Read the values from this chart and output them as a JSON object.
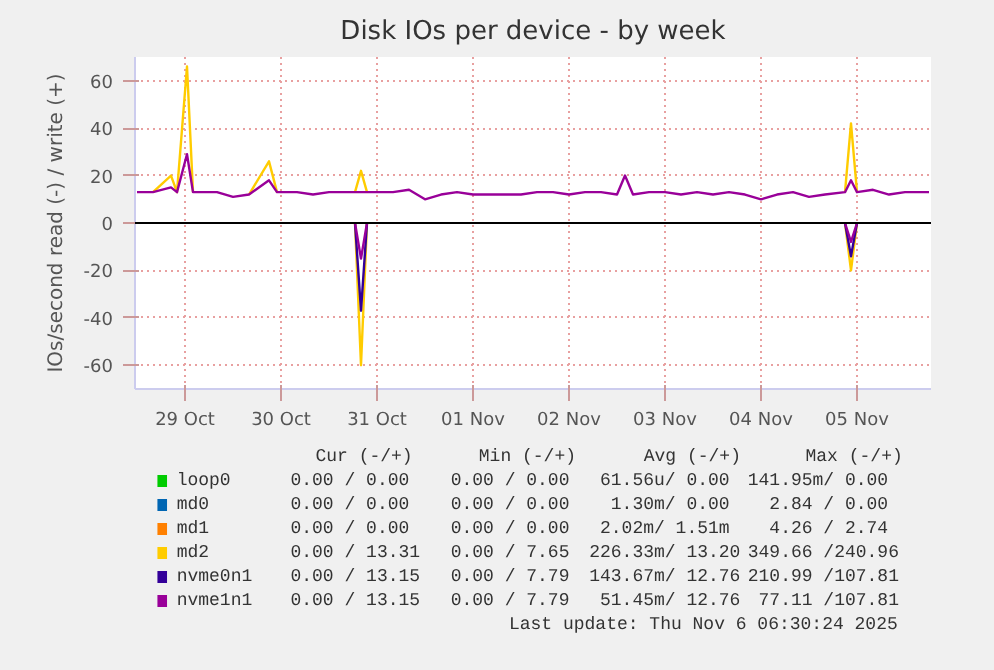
{
  "chart_data": {
    "type": "line",
    "title": "Disk IOs per device - by week",
    "ylabel": "IOs/second read (-) / write (+)",
    "x": [
      "2025-10-29T00:00",
      "2025-10-29T04:00",
      "2025-10-29T08:30",
      "2025-10-29T10:00",
      "2025-10-29T12:30",
      "2025-10-29T14:00",
      "2025-10-29T16:00",
      "2025-10-29T20:00",
      "2025-10-30T00:00",
      "2025-10-30T04:00",
      "2025-10-30T09:00",
      "2025-10-30T11:00",
      "2025-10-30T16:00",
      "2025-10-30T20:00",
      "2025-10-31T00:00",
      "2025-10-31T04:00",
      "2025-10-31T06:30",
      "2025-10-31T08:00",
      "2025-10-31T09:30",
      "2025-10-31T12:00",
      "2025-10-31T16:00",
      "2025-10-31T20:00",
      "2025-11-01T00:00",
      "2025-11-01T04:00",
      "2025-11-01T08:00",
      "2025-11-01T12:00",
      "2025-11-01T16:00",
      "2025-11-01T20:00",
      "2025-11-02T00:00",
      "2025-11-02T04:00",
      "2025-11-02T08:00",
      "2025-11-02T12:00",
      "2025-11-02T16:00",
      "2025-11-02T20:00",
      "2025-11-03T00:00",
      "2025-11-03T02:00",
      "2025-11-03T04:00",
      "2025-11-03T08:00",
      "2025-11-03T12:00",
      "2025-11-03T16:00",
      "2025-11-03T20:00",
      "2025-11-04T00:00",
      "2025-11-04T04:00",
      "2025-11-04T08:00",
      "2025-11-04T12:00",
      "2025-11-04T16:00",
      "2025-11-04T20:00",
      "2025-11-05T00:00",
      "2025-11-05T04:00",
      "2025-11-05T09:00",
      "2025-11-05T10:30",
      "2025-11-05T12:00",
      "2025-11-05T16:00",
      "2025-11-05T20:00",
      "2025-11-06T00:00",
      "2025-11-06T04:00",
      "2025-11-06T06:00"
    ],
    "series": [
      {
        "name": "loop0",
        "color": "#00cc00",
        "values": [
          null,
          null,
          null,
          null,
          null,
          null,
          null,
          null,
          null,
          null,
          null,
          null,
          null,
          null,
          null,
          null,
          null,
          null,
          null,
          null,
          null,
          null,
          null,
          null,
          null,
          null,
          null,
          null,
          null,
          null,
          null,
          null,
          null,
          null,
          null,
          null,
          null,
          null,
          null,
          null,
          null,
          null,
          null,
          null,
          null,
          null,
          null,
          null,
          null,
          null,
          null,
          null,
          null,
          null,
          null,
          null,
          null
        ]
      },
      {
        "name": "md0",
        "color": "#0066b3",
        "values": [
          null,
          null,
          null,
          null,
          null,
          null,
          null,
          null,
          null,
          null,
          null,
          null,
          null,
          null,
          null,
          null,
          null,
          null,
          null,
          null,
          null,
          null,
          null,
          null,
          null,
          null,
          null,
          null,
          null,
          null,
          null,
          null,
          null,
          null,
          null,
          null,
          null,
          null,
          null,
          null,
          null,
          null,
          null,
          null,
          null,
          null,
          null,
          null,
          null,
          null,
          null,
          null,
          null,
          null,
          null,
          null,
          null
        ]
      },
      {
        "name": "md1",
        "color": "#ff8000",
        "values": [
          null,
          null,
          null,
          null,
          null,
          null,
          null,
          null,
          null,
          null,
          null,
          null,
          null,
          null,
          null,
          null,
          null,
          null,
          null,
          null,
          null,
          null,
          null,
          null,
          null,
          null,
          null,
          null,
          null,
          null,
          null,
          null,
          null,
          null,
          null,
          null,
          null,
          null,
          null,
          null,
          null,
          null,
          null,
          null,
          null,
          null,
          null,
          null,
          null,
          null,
          null,
          null,
          null,
          null,
          null,
          null,
          null
        ]
      },
      {
        "name": "md2",
        "color": "#ffcc00",
        "values": [
          null,
          13,
          20,
          13,
          66,
          13,
          null,
          null,
          null,
          12,
          26,
          13,
          null,
          null,
          null,
          null,
          13,
          22,
          13,
          null,
          null,
          null,
          null,
          null,
          null,
          null,
          null,
          null,
          null,
          null,
          null,
          null,
          null,
          null,
          null,
          null,
          null,
          null,
          null,
          null,
          null,
          null,
          null,
          null,
          null,
          null,
          null,
          null,
          null,
          13,
          42,
          13,
          null,
          null,
          null,
          null,
          null
        ]
      },
      {
        "color": "#ffcc00",
        "values": [
          null,
          null,
          null,
          null,
          null,
          null,
          null,
          null,
          null,
          null,
          null,
          null,
          null,
          null,
          null,
          null,
          0,
          -60,
          0,
          null,
          null,
          null,
          null,
          null,
          null,
          null,
          null,
          null,
          null,
          null,
          null,
          null,
          null,
          null,
          null,
          null,
          null,
          null,
          null,
          null,
          null,
          null,
          null,
          null,
          null,
          null,
          null,
          null,
          null,
          0,
          -20,
          0,
          null,
          null,
          null,
          null,
          null
        ]
      },
      {
        "name": "nvme0n1",
        "color": "#330099",
        "values": [
          null,
          null,
          null,
          null,
          null,
          null,
          null,
          null,
          null,
          null,
          null,
          null,
          null,
          null,
          null,
          null,
          null,
          null,
          null,
          null,
          null,
          null,
          null,
          null,
          null,
          null,
          null,
          null,
          null,
          null,
          null,
          null,
          null,
          null,
          null,
          null,
          null,
          null,
          null,
          null,
          null,
          null,
          null,
          null,
          null,
          null,
          null,
          null,
          null,
          null,
          null,
          null,
          null,
          null,
          null,
          null,
          null
        ]
      },
      {
        "color": "#330099",
        "values": [
          null,
          null,
          null,
          null,
          null,
          null,
          null,
          null,
          null,
          null,
          null,
          null,
          null,
          null,
          null,
          null,
          0,
          -37,
          0,
          null,
          null,
          null,
          null,
          null,
          null,
          null,
          null,
          null,
          null,
          null,
          null,
          null,
          null,
          null,
          null,
          null,
          null,
          null,
          null,
          null,
          null,
          null,
          null,
          null,
          null,
          null,
          null,
          null,
          null,
          0,
          -14,
          0,
          null,
          null,
          null,
          null,
          null
        ]
      },
      {
        "name": "nvme1n1",
        "color": "#990099",
        "values": [
          13,
          13,
          15,
          13,
          29,
          13,
          13,
          13,
          11,
          12,
          18,
          13,
          13,
          12,
          13,
          13,
          13,
          13,
          13,
          13,
          13,
          14,
          10,
          12,
          13,
          12,
          12,
          12,
          12,
          13,
          13,
          12,
          13,
          13,
          12,
          20,
          12,
          13,
          13,
          12,
          13,
          12,
          13,
          12,
          10,
          12,
          13,
          11,
          12,
          13,
          18,
          13,
          14,
          12,
          13,
          13,
          13
        ]
      },
      {
        "color": "#990099",
        "values": [
          null,
          null,
          null,
          null,
          null,
          null,
          null,
          null,
          null,
          null,
          null,
          null,
          null,
          null,
          null,
          null,
          0,
          -15,
          0,
          null,
          null,
          null,
          null,
          null,
          null,
          null,
          null,
          null,
          null,
          null,
          null,
          null,
          null,
          null,
          null,
          null,
          null,
          null,
          null,
          null,
          null,
          null,
          null,
          null,
          null,
          null,
          null,
          null,
          null,
          0,
          -8,
          0,
          null,
          null,
          null,
          null,
          null
        ]
      }
    ],
    "xlim": [
      "2025-10-28T23:30",
      "2025-11-06T06:30"
    ],
    "xticks": [
      {
        "value": "2025-10-29T12:00",
        "label": "29 Oct"
      },
      {
        "value": "2025-10-30T12:00",
        "label": "30 Oct"
      },
      {
        "value": "2025-10-31T12:00",
        "label": "31 Oct"
      },
      {
        "value": "2025-11-01T12:00",
        "label": "01 Nov"
      },
      {
        "value": "2025-11-02T12:00",
        "label": "02 Nov"
      },
      {
        "value": "2025-11-03T12:00",
        "label": "03 Nov"
      },
      {
        "value": "2025-11-04T12:00",
        "label": "04 Nov"
      },
      {
        "value": "2025-11-05T12:00",
        "label": "05 Nov"
      }
    ],
    "ylim": [
      -70,
      70
    ],
    "yticks": [
      -60,
      -40,
      -20,
      0,
      20,
      40,
      60
    ],
    "ref_lines": [
      {
        "axis": "y",
        "value": 0,
        "color": "#000000"
      }
    ],
    "grid": true,
    "legend": "bottom",
    "line_style": "solid",
    "marker": "none",
    "annotations": [
      "Cur (-/+)",
      "Min (-/+)",
      "Avg (-/+)",
      "Max (-/+)",
      "0.00 /  0.00",
      "0.00 /  0.00",
      "61.56u/  0.00",
      "141.95m/  0.00",
      "0.00 /  0.00",
      "0.00 /  0.00",
      "1.30m/  0.00",
      "2.84 /  0.00",
      "0.00 /  0.00",
      "0.00 /  0.00",
      "2.02m/  1.51m",
      "4.26 /  2.74",
      "0.00 / 13.31",
      "0.00 /  7.65",
      "226.33m/ 13.20",
      "349.66 /240.96",
      "0.00 / 13.15",
      "0.00 /  7.79",
      "143.67m/ 12.76",
      "210.99 /107.81",
      "0.00 / 13.15",
      "0.00 /  7.79",
      "51.45m/ 12.76",
      "77.11 /107.81",
      "Last update: Thu Nov  6 06:30:24 2025"
    ]
  }
}
